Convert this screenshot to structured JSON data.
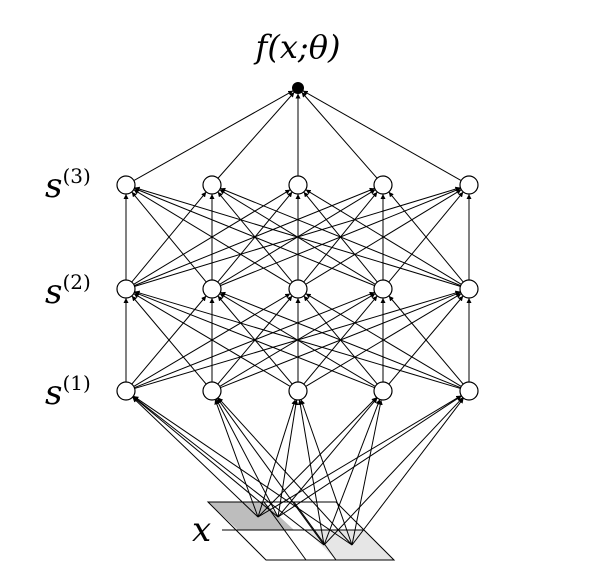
{
  "output_label": "f(x;θ)",
  "input_label": "x",
  "layers": [
    {
      "base": "s",
      "superscript": "(3)"
    },
    {
      "base": "s",
      "superscript": "(2)"
    },
    {
      "base": "s",
      "superscript": "(1)"
    }
  ],
  "colors": {
    "line": "#000000",
    "node_fill": "#ffffff",
    "output_node": "#000000",
    "patch_dark": "#bdbdbd",
    "patch_light": "#e6e6e6"
  }
}
